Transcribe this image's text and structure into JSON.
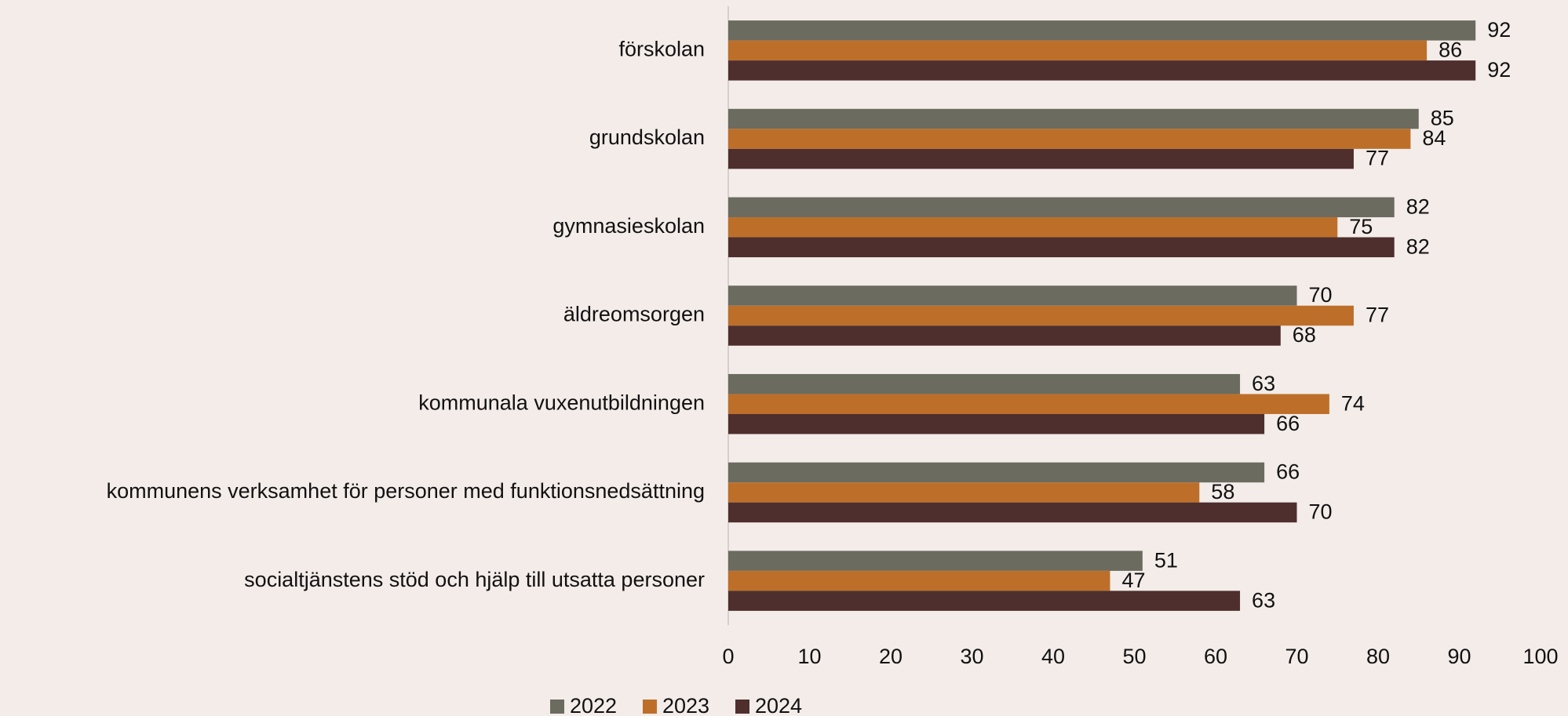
{
  "chart_data": {
    "type": "hbar",
    "categories": [
      "förskolan",
      "grundskolan",
      "gymnasieskolan",
      "äldreomsorgen",
      "kommunala vuxenutbildningen",
      "kommunens verksamhet för personer med funktionsnedsättning",
      "socialtjänstens stöd och hjälp till utsatta personer"
    ],
    "series": [
      {
        "name": "2022",
        "color": "#6b6b5f",
        "values": [
          92,
          85,
          82,
          70,
          63,
          66,
          51
        ]
      },
      {
        "name": "2023",
        "color": "#bd6f2a",
        "values": [
          86,
          84,
          75,
          77,
          74,
          58,
          47
        ]
      },
      {
        "name": "2024",
        "color": "#4e2f2d",
        "values": [
          92,
          77,
          82,
          68,
          66,
          70,
          63
        ]
      }
    ],
    "xlim": [
      0,
      100
    ],
    "xticks": [
      0,
      10,
      20,
      30,
      40,
      50,
      60,
      70,
      80,
      90,
      100
    ],
    "grid": false,
    "legend": "bottom"
  }
}
